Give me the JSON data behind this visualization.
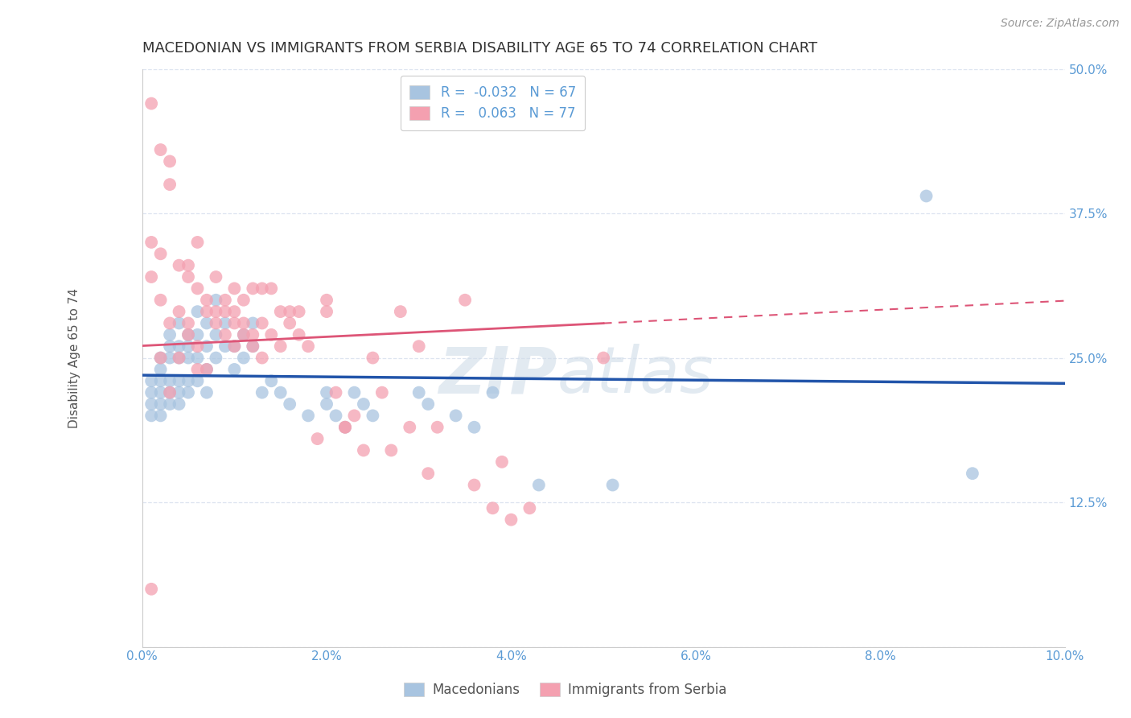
{
  "title": "MACEDONIAN VS IMMIGRANTS FROM SERBIA DISABILITY AGE 65 TO 74 CORRELATION CHART",
  "source": "Source: ZipAtlas.com",
  "ylabel": "Disability Age 65 to 74",
  "xlim": [
    0.0,
    0.1
  ],
  "ylim": [
    0.0,
    0.5
  ],
  "xticks": [
    0.0,
    0.02,
    0.04,
    0.06,
    0.08,
    0.1
  ],
  "xtick_labels": [
    "0.0%",
    "2.0%",
    "4.0%",
    "6.0%",
    "8.0%",
    "10.0%"
  ],
  "yticks": [
    0.0,
    0.125,
    0.25,
    0.375,
    0.5
  ],
  "ytick_labels": [
    "",
    "12.5%",
    "25.0%",
    "37.5%",
    "50.0%"
  ],
  "blue_R": -0.032,
  "blue_N": 67,
  "pink_R": 0.063,
  "pink_N": 77,
  "blue_color": "#a8c4e0",
  "pink_color": "#f4a0b0",
  "blue_line_color": "#2255aa",
  "pink_line_color": "#dd5577",
  "blue_scatter": [
    [
      0.001,
      0.23
    ],
    [
      0.001,
      0.22
    ],
    [
      0.001,
      0.21
    ],
    [
      0.001,
      0.2
    ],
    [
      0.002,
      0.25
    ],
    [
      0.002,
      0.24
    ],
    [
      0.002,
      0.23
    ],
    [
      0.002,
      0.22
    ],
    [
      0.002,
      0.21
    ],
    [
      0.002,
      0.2
    ],
    [
      0.003,
      0.27
    ],
    [
      0.003,
      0.26
    ],
    [
      0.003,
      0.25
    ],
    [
      0.003,
      0.23
    ],
    [
      0.003,
      0.22
    ],
    [
      0.003,
      0.21
    ],
    [
      0.004,
      0.28
    ],
    [
      0.004,
      0.26
    ],
    [
      0.004,
      0.25
    ],
    [
      0.004,
      0.23
    ],
    [
      0.004,
      0.22
    ],
    [
      0.004,
      0.21
    ],
    [
      0.005,
      0.27
    ],
    [
      0.005,
      0.26
    ],
    [
      0.005,
      0.25
    ],
    [
      0.005,
      0.23
    ],
    [
      0.005,
      0.22
    ],
    [
      0.006,
      0.29
    ],
    [
      0.006,
      0.27
    ],
    [
      0.006,
      0.25
    ],
    [
      0.006,
      0.23
    ],
    [
      0.007,
      0.28
    ],
    [
      0.007,
      0.26
    ],
    [
      0.007,
      0.24
    ],
    [
      0.007,
      0.22
    ],
    [
      0.008,
      0.3
    ],
    [
      0.008,
      0.27
    ],
    [
      0.008,
      0.25
    ],
    [
      0.009,
      0.28
    ],
    [
      0.009,
      0.26
    ],
    [
      0.01,
      0.26
    ],
    [
      0.01,
      0.24
    ],
    [
      0.011,
      0.27
    ],
    [
      0.011,
      0.25
    ],
    [
      0.012,
      0.28
    ],
    [
      0.012,
      0.26
    ],
    [
      0.013,
      0.22
    ],
    [
      0.014,
      0.23
    ],
    [
      0.015,
      0.22
    ],
    [
      0.016,
      0.21
    ],
    [
      0.018,
      0.2
    ],
    [
      0.02,
      0.22
    ],
    [
      0.02,
      0.21
    ],
    [
      0.021,
      0.2
    ],
    [
      0.022,
      0.19
    ],
    [
      0.023,
      0.22
    ],
    [
      0.024,
      0.21
    ],
    [
      0.025,
      0.2
    ],
    [
      0.03,
      0.22
    ],
    [
      0.031,
      0.21
    ],
    [
      0.034,
      0.2
    ],
    [
      0.036,
      0.19
    ],
    [
      0.038,
      0.22
    ],
    [
      0.043,
      0.14
    ],
    [
      0.051,
      0.14
    ],
    [
      0.085,
      0.39
    ],
    [
      0.09,
      0.15
    ]
  ],
  "pink_scatter": [
    [
      0.001,
      0.47
    ],
    [
      0.001,
      0.35
    ],
    [
      0.001,
      0.32
    ],
    [
      0.001,
      0.05
    ],
    [
      0.002,
      0.43
    ],
    [
      0.002,
      0.34
    ],
    [
      0.002,
      0.3
    ],
    [
      0.002,
      0.25
    ],
    [
      0.003,
      0.42
    ],
    [
      0.003,
      0.4
    ],
    [
      0.003,
      0.28
    ],
    [
      0.003,
      0.22
    ],
    [
      0.004,
      0.33
    ],
    [
      0.004,
      0.29
    ],
    [
      0.004,
      0.25
    ],
    [
      0.005,
      0.33
    ],
    [
      0.005,
      0.32
    ],
    [
      0.005,
      0.28
    ],
    [
      0.005,
      0.27
    ],
    [
      0.006,
      0.35
    ],
    [
      0.006,
      0.31
    ],
    [
      0.006,
      0.26
    ],
    [
      0.006,
      0.24
    ],
    [
      0.007,
      0.3
    ],
    [
      0.007,
      0.29
    ],
    [
      0.007,
      0.24
    ],
    [
      0.008,
      0.32
    ],
    [
      0.008,
      0.29
    ],
    [
      0.008,
      0.28
    ],
    [
      0.009,
      0.3
    ],
    [
      0.009,
      0.29
    ],
    [
      0.009,
      0.27
    ],
    [
      0.01,
      0.31
    ],
    [
      0.01,
      0.29
    ],
    [
      0.01,
      0.28
    ],
    [
      0.01,
      0.26
    ],
    [
      0.011,
      0.3
    ],
    [
      0.011,
      0.28
    ],
    [
      0.011,
      0.27
    ],
    [
      0.012,
      0.31
    ],
    [
      0.012,
      0.27
    ],
    [
      0.012,
      0.26
    ],
    [
      0.013,
      0.31
    ],
    [
      0.013,
      0.28
    ],
    [
      0.013,
      0.25
    ],
    [
      0.014,
      0.31
    ],
    [
      0.014,
      0.27
    ],
    [
      0.015,
      0.29
    ],
    [
      0.015,
      0.26
    ],
    [
      0.016,
      0.29
    ],
    [
      0.016,
      0.28
    ],
    [
      0.017,
      0.29
    ],
    [
      0.017,
      0.27
    ],
    [
      0.018,
      0.26
    ],
    [
      0.019,
      0.18
    ],
    [
      0.02,
      0.29
    ],
    [
      0.02,
      0.3
    ],
    [
      0.021,
      0.22
    ],
    [
      0.022,
      0.19
    ],
    [
      0.022,
      0.19
    ],
    [
      0.023,
      0.2
    ],
    [
      0.024,
      0.17
    ],
    [
      0.025,
      0.25
    ],
    [
      0.026,
      0.22
    ],
    [
      0.027,
      0.17
    ],
    [
      0.028,
      0.29
    ],
    [
      0.029,
      0.19
    ],
    [
      0.03,
      0.26
    ],
    [
      0.031,
      0.15
    ],
    [
      0.032,
      0.19
    ],
    [
      0.035,
      0.3
    ],
    [
      0.036,
      0.14
    ],
    [
      0.038,
      0.12
    ],
    [
      0.039,
      0.16
    ],
    [
      0.04,
      0.11
    ],
    [
      0.042,
      0.12
    ],
    [
      0.05,
      0.25
    ]
  ],
  "watermark_part1": "ZIP",
  "watermark_part2": "atlas",
  "legend_blue_label": "Macedonians",
  "legend_pink_label": "Immigrants from Serbia",
  "axis_tick_color": "#5b9bd5",
  "grid_color": "#dde4f0",
  "title_fontsize": 13,
  "source_fontsize": 10,
  "tick_fontsize": 11
}
